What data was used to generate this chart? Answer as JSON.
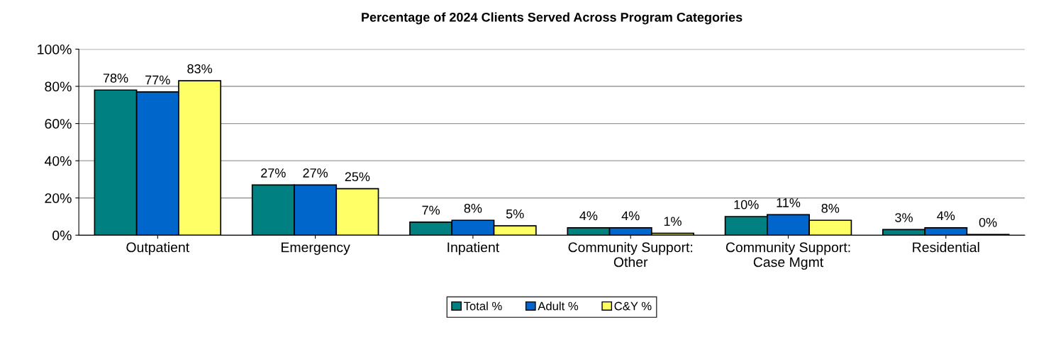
{
  "chart_data": {
    "type": "bar",
    "title": "Percentage of 2024 Clients Served Across Program Categories",
    "categories": [
      "Outpatient",
      "Emergency",
      "Inpatient",
      "Community Support:\nOther",
      "Community Support:\nCase Mgmt",
      "Residential"
    ],
    "series": [
      {
        "name": "Total %",
        "color": "#008080",
        "values": [
          78,
          27,
          7,
          4,
          10,
          3
        ],
        "value_labels": [
          "78%",
          "27%",
          "7%",
          "4%",
          "10%",
          "3%"
        ]
      },
      {
        "name": "Adult %",
        "color": "#0066cc",
        "values": [
          77,
          27,
          8,
          4,
          11,
          4
        ],
        "value_labels": [
          "77%",
          "27%",
          "8%",
          "4%",
          "11%",
          "4%"
        ]
      },
      {
        "name": "C&Y %",
        "color": "#ffff66",
        "values": [
          83,
          25,
          5,
          1,
          8,
          0.4
        ],
        "value_labels": [
          "83%",
          "25%",
          "5%",
          "1%",
          "8%",
          "0%"
        ]
      }
    ],
    "ylim": [
      0,
      100
    ],
    "yticks": [
      {
        "value": 0,
        "label": "0%"
      },
      {
        "value": 20,
        "label": "20%"
      },
      {
        "value": 40,
        "label": "40%"
      },
      {
        "value": 60,
        "label": "60%"
      },
      {
        "value": 80,
        "label": "80%"
      },
      {
        "value": 100,
        "label": "100%"
      }
    ],
    "grid": "y",
    "legend": "bottom"
  }
}
